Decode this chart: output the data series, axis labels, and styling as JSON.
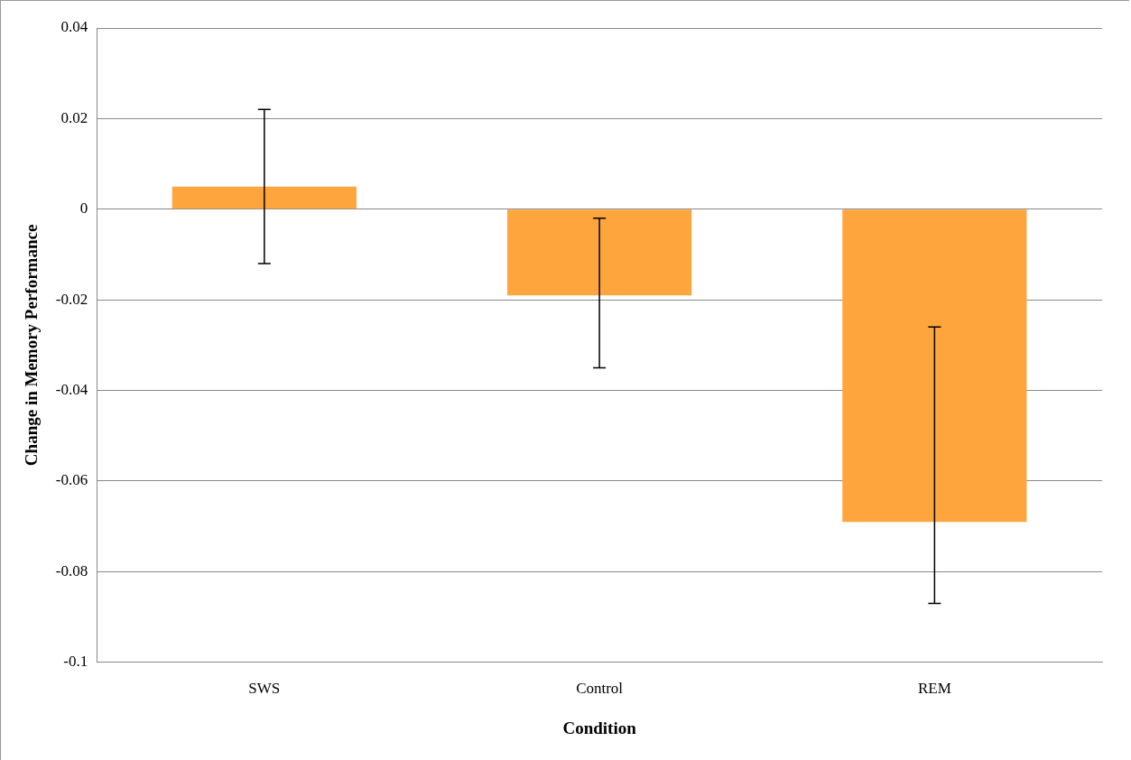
{
  "chart_data": {
    "type": "bar",
    "xlabel": "Condition",
    "ylabel": "Change in Memory Performance",
    "categories": [
      "SWS",
      "Control",
      "REM"
    ],
    "values": [
      0.005,
      -0.019,
      -0.069
    ],
    "errors": [
      [
        -0.012,
        0.022
      ],
      [
        -0.035,
        -0.002
      ],
      [
        -0.087,
        -0.026
      ]
    ],
    "color": "#ffa53d",
    "ylim": [
      -0.1,
      0.04
    ],
    "yticks": [
      -0.1,
      -0.08,
      -0.06,
      -0.04,
      -0.02,
      0,
      0.02,
      0.04
    ],
    "grid": "y",
    "legend": false
  }
}
